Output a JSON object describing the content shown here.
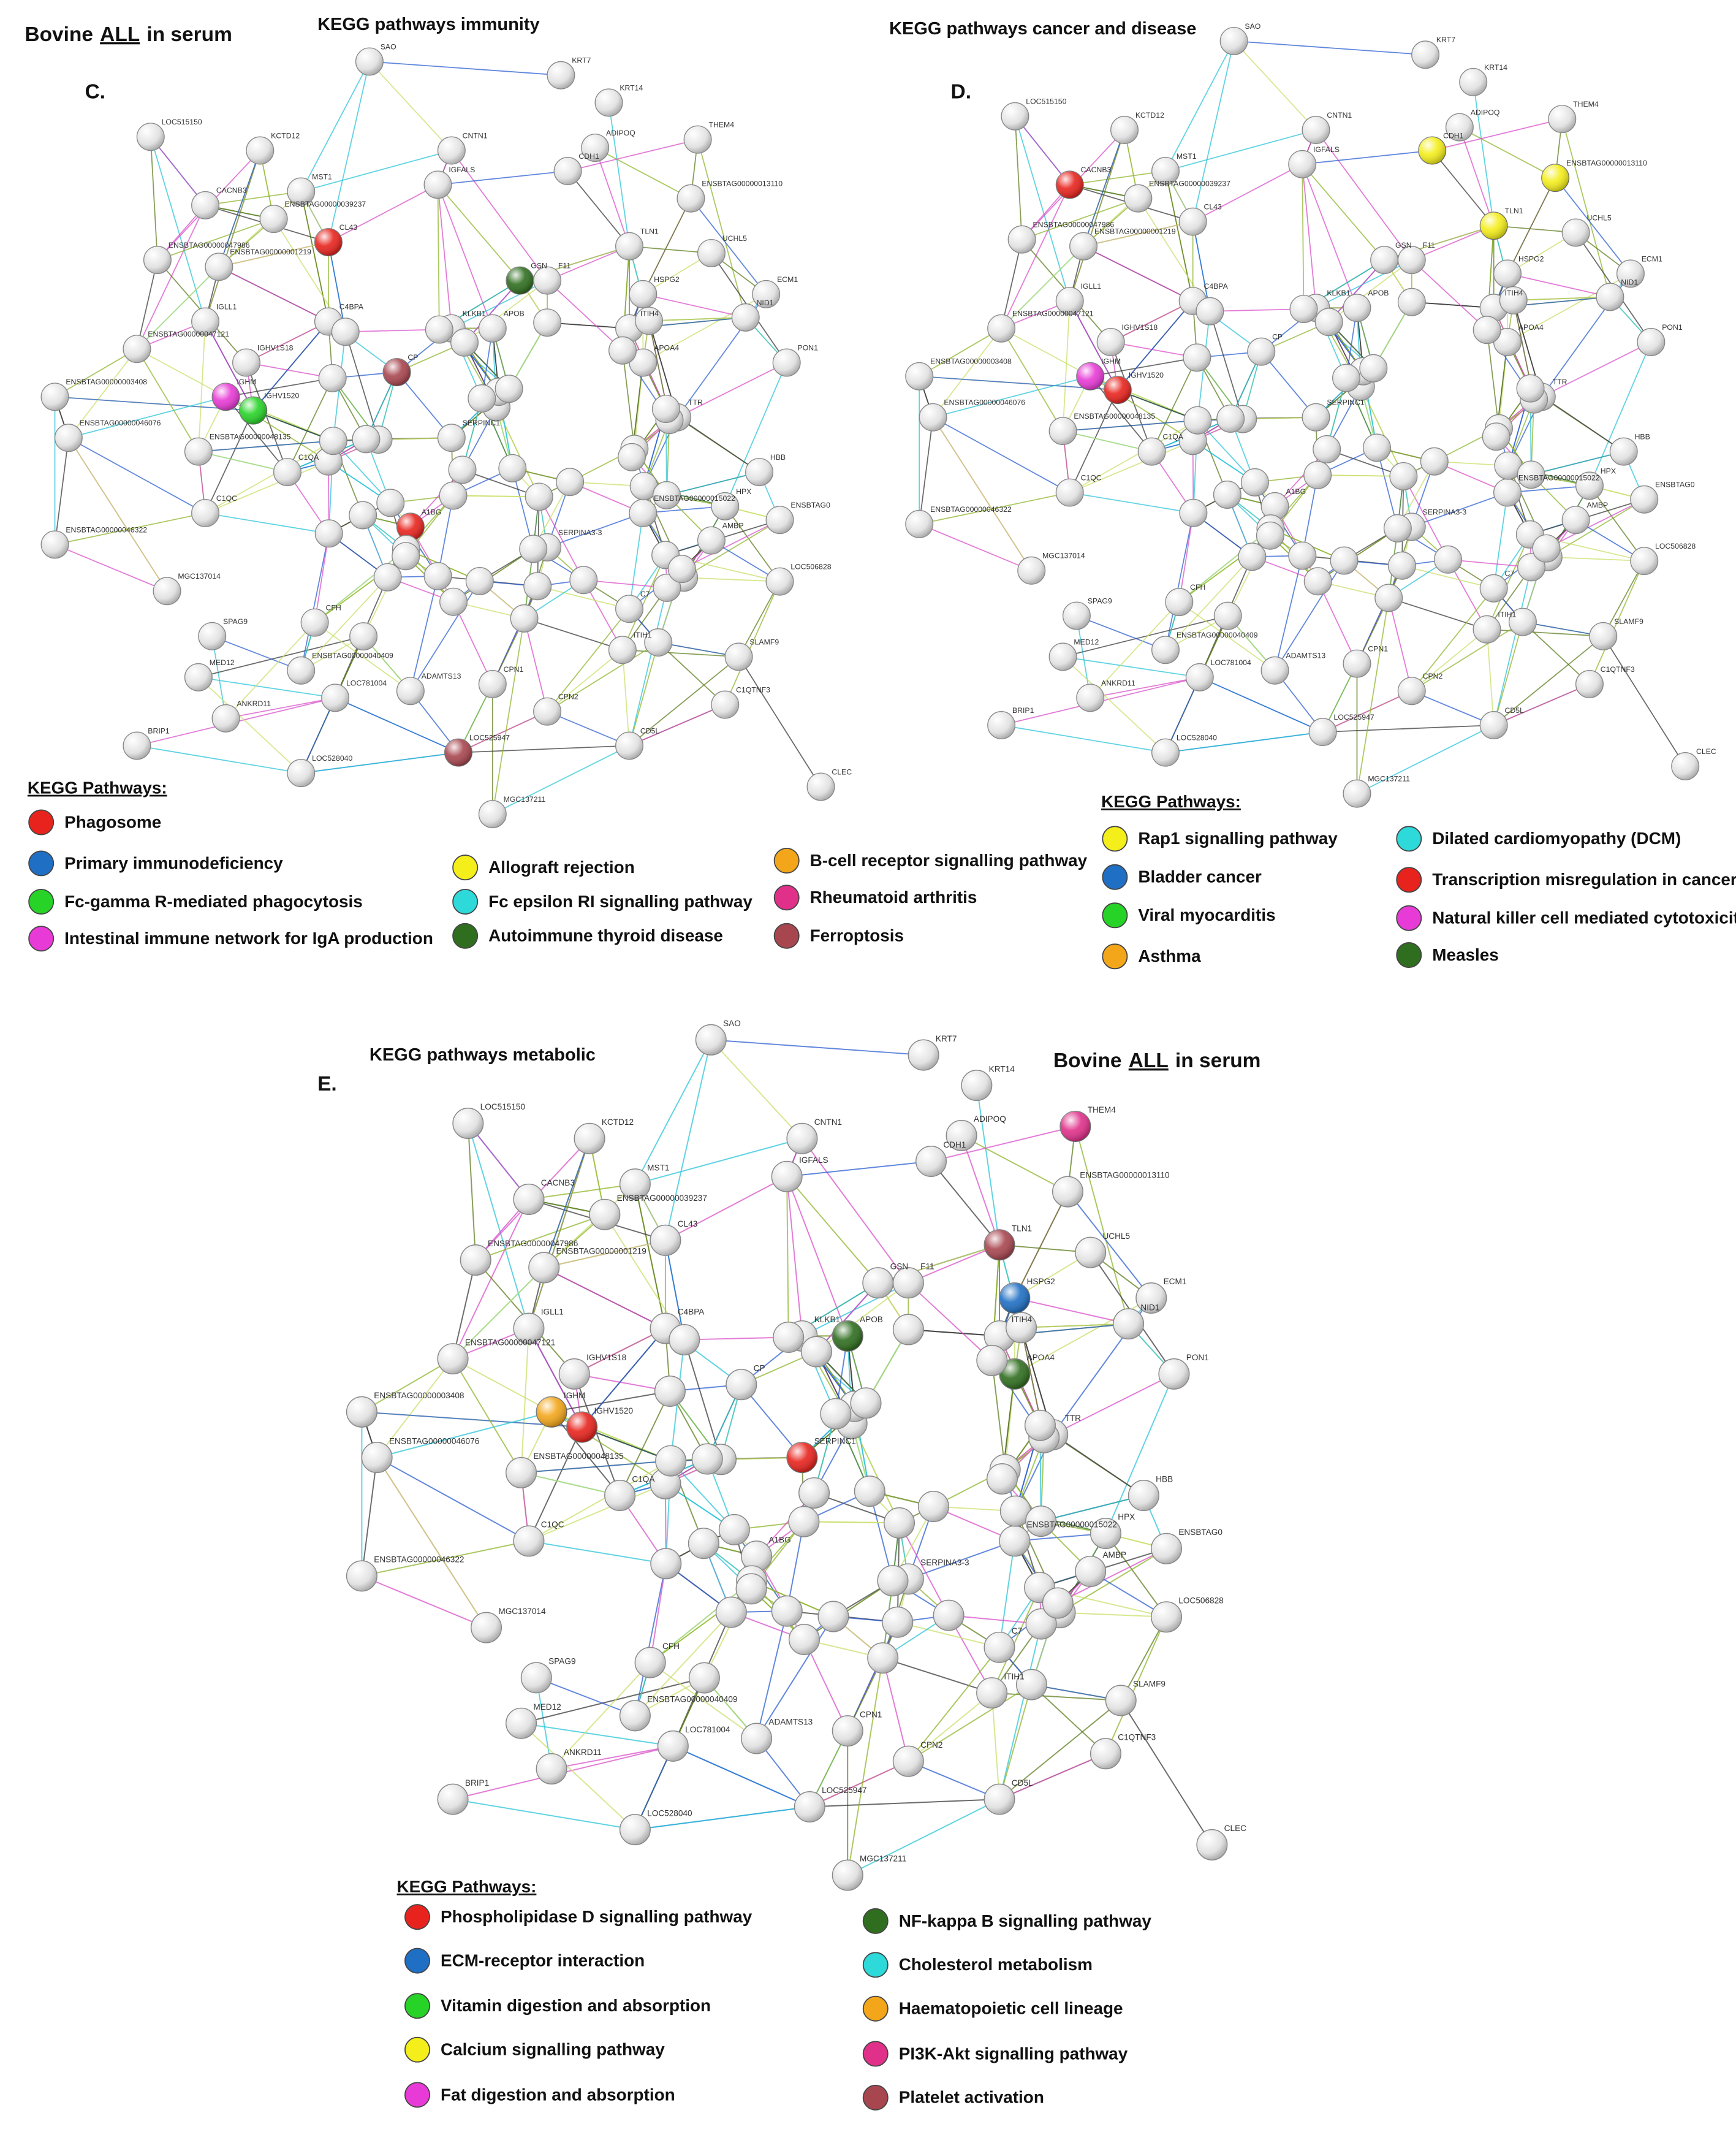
{
  "header": {
    "title": {
      "prefix": "Bovine",
      "emphasis": "ALL",
      "suffix": "in serum"
    }
  },
  "nodes": [
    "SAO",
    "KRT7",
    "KRT14",
    "ADIPOQ",
    "CDH1",
    "THEM4",
    "ENSBTAG00000013110",
    "LOC515150",
    "KCTD12",
    "CNTN1",
    "IGFALS",
    "CACNB3",
    "MST1",
    "ENSBTAG00000039237",
    "CL43",
    "TLN1",
    "UCHL5",
    "ENSBTAG00000047986",
    "ENSBTAG00000001219",
    "GSN",
    "F11",
    "HSPG2",
    "ECM1",
    "IGLL1",
    "C4BPA",
    "KLKB1",
    "APOB",
    "ITIH4",
    "NID1",
    "ENSBTAG00000047121",
    "IGHV1S18",
    "APOA4",
    "PON1",
    "CP",
    "ENSBTAG00000003408",
    "IGHM",
    "IGHV1520",
    "SERPINC1",
    "TTR",
    "ENSBTAG00000046076",
    "ENSBTAG00000048135",
    "C1QA",
    "HBB",
    "C1QC",
    "HPX",
    "ENSBTAG00000046322",
    "ENSBTAG00000015022",
    "A1BG",
    "AMBP",
    "ENSBTAG0",
    "MGC137014",
    "SERPINA3-3",
    "LOC506828",
    "CFH",
    "C7",
    "SPAG9",
    "SLAMF9",
    "MED12",
    "ENSBTAG00000040409",
    "ITIH1",
    "LOC781004",
    "ADAMTS13",
    "CPN1",
    "C1QTNF3",
    "ANKRD11",
    "CPN2",
    "CD5L",
    "BRIP1",
    "LOC525947",
    "LOC528040",
    "CLEC",
    "MGC137211"
  ],
  "panels": [
    {
      "label": "C.",
      "title": "KEGG pathways immunity",
      "legend": {
        "heading": "KEGG Pathways:",
        "items": [
          {
            "name": "Phagosome",
            "color": "#e8231d"
          },
          {
            "name": "Primary immunodeficiency",
            "color": "#1f6fc4"
          },
          {
            "name": "Fc-gamma R-mediated phagocytosis",
            "color": "#27d327"
          },
          {
            "name": "Intestinal immune network for IgA production",
            "color": "#e83ad6"
          },
          {
            "name": "Allograft rejection",
            "color": "#f4ee1a"
          },
          {
            "name": "Fc epsilon RI signalling pathway",
            "color": "#2dd9d9"
          },
          {
            "name": "Autoimmune thyroid disease",
            "color": "#2f6e1f"
          },
          {
            "name": "B-cell receptor signalling pathway",
            "color": "#f3a61a"
          },
          {
            "name": "Rheumatoid arthritis",
            "color": "#e0308a"
          },
          {
            "name": "Ferroptosis",
            "color": "#a8464f"
          }
        ]
      }
    },
    {
      "label": "D.",
      "title": "KEGG pathways cancer and disease",
      "legend": {
        "heading": "KEGG Pathways:",
        "items": [
          {
            "name": "Rap1 signalling pathway",
            "color": "#f4ee1a"
          },
          {
            "name": "Bladder cancer",
            "color": "#1f6fc4"
          },
          {
            "name": "Viral myocarditis",
            "color": "#27d327"
          },
          {
            "name": "Asthma",
            "color": "#f3a61a"
          },
          {
            "name": "Dilated cardiomyopathy (DCM)",
            "color": "#2dd9d9"
          },
          {
            "name": "Transcription misregulation in cancer",
            "color": "#e8231d"
          },
          {
            "name": "Natural killer cell mediated cytotoxicity",
            "color": "#e83ad6"
          },
          {
            "name": "Measles",
            "color": "#2f6e1f"
          }
        ]
      }
    },
    {
      "label": "E.",
      "title": "KEGG pathways metabolic",
      "legend": {
        "heading": "KEGG Pathways:",
        "items": [
          {
            "name": "Phospholipidase D signalling pathway",
            "color": "#e8231d"
          },
          {
            "name": "ECM-receptor interaction",
            "color": "#1f6fc4"
          },
          {
            "name": "Vitamin digestion and absorption",
            "color": "#27d327"
          },
          {
            "name": "Calcium signalling pathway",
            "color": "#f4ee1a"
          },
          {
            "name": "Fat digestion and absorption",
            "color": "#e83ad6"
          },
          {
            "name": "NF-kappa B  signalling pathway",
            "color": "#2f6e1f"
          },
          {
            "name": "Cholesterol metabolism",
            "color": "#2dd9d9"
          },
          {
            "name": "Haematopoietic cell lineage",
            "color": "#f3a61a"
          },
          {
            "name": "PI3K-Akt signalling pathway",
            "color": "#e0308a"
          },
          {
            "name": "Platelet activation",
            "color": "#a8464f"
          }
        ]
      }
    }
  ]
}
